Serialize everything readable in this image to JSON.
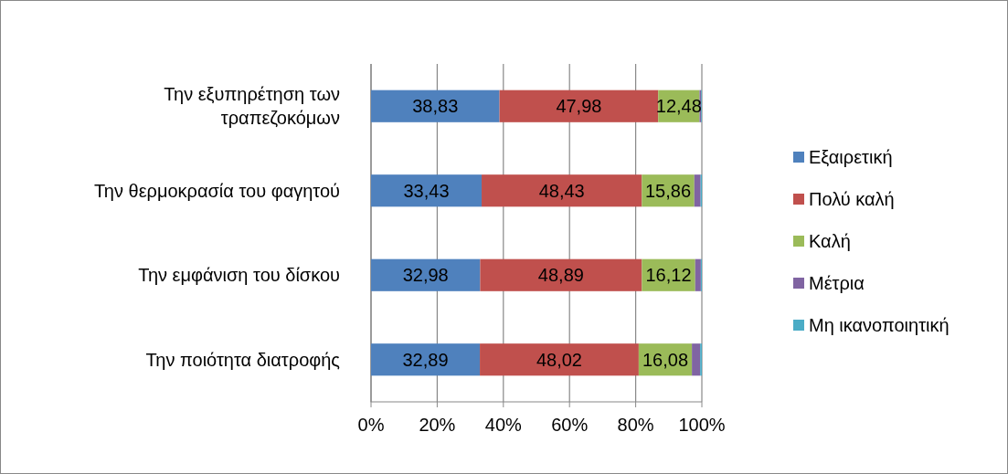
{
  "chart_data": {
    "type": "bar",
    "orientation": "horizontal",
    "stacked": true,
    "categories": [
      "Την εξυπηρέτηση των τραπεζοκόμων",
      "Την θερμοκρασία του φαγητού",
      "Την εμφάνιση του δίσκου",
      "Την ποιότητα διατροφής"
    ],
    "series": [
      {
        "name": "Εξαιρετική",
        "color": "#4f81bd",
        "values": [
          38.83,
          33.43,
          32.98,
          32.89
        ],
        "value_labels": [
          "38,83",
          "33,43",
          "32,98",
          "32,89"
        ]
      },
      {
        "name": "Πολύ καλή",
        "color": "#c0504d",
        "values": [
          47.98,
          48.43,
          48.89,
          48.02
        ],
        "value_labels": [
          "47,98",
          "48,43",
          "48,89",
          "48,02"
        ]
      },
      {
        "name": "Καλή",
        "color": "#9bbb59",
        "values": [
          12.48,
          15.86,
          16.12,
          16.08
        ],
        "value_labels": [
          "12,48",
          "15,86",
          "16,12",
          "16,08"
        ]
      },
      {
        "name": "Μέτρια",
        "color": "#8064a2",
        "values": [
          0.5,
          1.9,
          1.7,
          2.5
        ],
        "value_labels": [
          null,
          null,
          null,
          null
        ]
      },
      {
        "name": "Μη ικανοποιητική",
        "color": "#4bacc6",
        "values": [
          0.2,
          0.4,
          0.3,
          0.5
        ],
        "value_labels": [
          null,
          null,
          null,
          null
        ]
      }
    ],
    "xlim": [
      0,
      100
    ],
    "xticks": [
      {
        "value": 0,
        "label": "0%"
      },
      {
        "value": 20,
        "label": "20%"
      },
      {
        "value": 40,
        "label": "40%"
      },
      {
        "value": 60,
        "label": "60%"
      },
      {
        "value": 80,
        "label": "80%"
      },
      {
        "value": 100,
        "label": "100%"
      }
    ],
    "grid": "x",
    "legend": "right"
  }
}
